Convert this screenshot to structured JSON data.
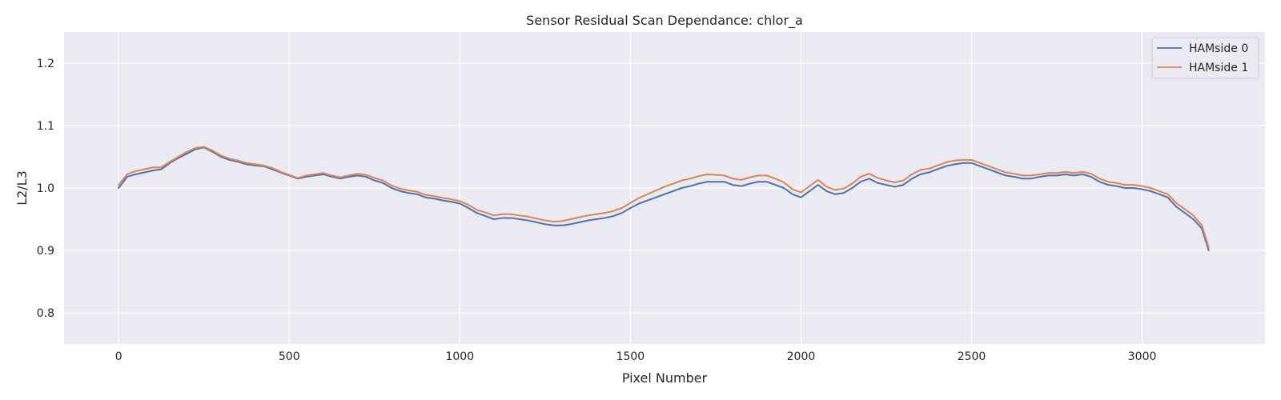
{
  "chart_data": {
    "type": "line",
    "title": "Sensor Residual Scan Dependance: chlor_a",
    "xlabel": "Pixel Number",
    "ylabel": "L2/L3",
    "xlim": [
      -160,
      3360
    ],
    "ylim": [
      0.75,
      1.25
    ],
    "xticks": [
      0,
      500,
      1000,
      1500,
      2000,
      2500,
      3000
    ],
    "yticks": [
      0.8,
      0.9,
      1.0,
      1.1,
      1.2
    ],
    "xtick_labels": [
      "0",
      "500",
      "1000",
      "1500",
      "2000",
      "2500",
      "3000"
    ],
    "ytick_labels": [
      "0.8",
      "0.9",
      "1.0",
      "1.1",
      "1.2"
    ],
    "grid": true,
    "legend_position": "top-right",
    "background_color": "#eaeaf2",
    "grid_color": "#ffffff",
    "series": [
      {
        "name": "HAMside 0",
        "color": "#4c72b0",
        "x": [
          0,
          25,
          50,
          75,
          100,
          125,
          150,
          175,
          200,
          225,
          250,
          275,
          300,
          325,
          350,
          375,
          400,
          425,
          450,
          475,
          500,
          525,
          550,
          575,
          600,
          625,
          650,
          675,
          700,
          725,
          750,
          775,
          800,
          825,
          850,
          875,
          900,
          925,
          950,
          975,
          1000,
          1025,
          1050,
          1075,
          1100,
          1125,
          1150,
          1175,
          1200,
          1225,
          1250,
          1275,
          1300,
          1325,
          1350,
          1375,
          1400,
          1425,
          1450,
          1475,
          1500,
          1525,
          1550,
          1575,
          1600,
          1625,
          1650,
          1675,
          1700,
          1725,
          1750,
          1775,
          1800,
          1825,
          1850,
          1875,
          1900,
          1925,
          1950,
          1975,
          2000,
          2025,
          2050,
          2075,
          2100,
          2125,
          2150,
          2175,
          2200,
          2225,
          2250,
          2275,
          2300,
          2325,
          2350,
          2375,
          2400,
          2425,
          2450,
          2475,
          2500,
          2525,
          2550,
          2575,
          2600,
          2625,
          2650,
          2675,
          2700,
          2725,
          2750,
          2775,
          2800,
          2825,
          2850,
          2875,
          2900,
          2925,
          2950,
          2975,
          3000,
          3025,
          3050,
          3075,
          3100,
          3125,
          3150,
          3175,
          3195
        ],
        "y": [
          1.0,
          1.018,
          1.022,
          1.025,
          1.028,
          1.03,
          1.04,
          1.048,
          1.055,
          1.062,
          1.065,
          1.058,
          1.05,
          1.045,
          1.042,
          1.038,
          1.036,
          1.035,
          1.03,
          1.025,
          1.02,
          1.015,
          1.018,
          1.02,
          1.022,
          1.018,
          1.015,
          1.018,
          1.02,
          1.018,
          1.012,
          1.008,
          1.0,
          0.995,
          0.992,
          0.99,
          0.985,
          0.983,
          0.98,
          0.978,
          0.975,
          0.968,
          0.96,
          0.955,
          0.95,
          0.952,
          0.952,
          0.95,
          0.948,
          0.945,
          0.942,
          0.94,
          0.94,
          0.942,
          0.945,
          0.948,
          0.95,
          0.952,
          0.955,
          0.96,
          0.968,
          0.975,
          0.98,
          0.985,
          0.99,
          0.995,
          1.0,
          1.003,
          1.007,
          1.01,
          1.01,
          1.01,
          1.005,
          1.003,
          1.007,
          1.01,
          1.01,
          1.005,
          1.0,
          0.99,
          0.985,
          0.995,
          1.005,
          0.995,
          0.99,
          0.992,
          1.0,
          1.01,
          1.015,
          1.008,
          1.005,
          1.002,
          1.005,
          1.015,
          1.022,
          1.025,
          1.03,
          1.035,
          1.038,
          1.04,
          1.04,
          1.035,
          1.03,
          1.025,
          1.02,
          1.018,
          1.015,
          1.015,
          1.018,
          1.02,
          1.02,
          1.022,
          1.02,
          1.022,
          1.018,
          1.01,
          1.005,
          1.003,
          1.0,
          1.0,
          0.998,
          0.995,
          0.99,
          0.985,
          0.97,
          0.96,
          0.95,
          0.935,
          0.9
        ]
      },
      {
        "name": "HAMside 1",
        "color": "#dd8452",
        "x": [
          0,
          25,
          50,
          75,
          100,
          125,
          150,
          175,
          200,
          225,
          250,
          275,
          300,
          325,
          350,
          375,
          400,
          425,
          450,
          475,
          500,
          525,
          550,
          575,
          600,
          625,
          650,
          675,
          700,
          725,
          750,
          775,
          800,
          825,
          850,
          875,
          900,
          925,
          950,
          975,
          1000,
          1025,
          1050,
          1075,
          1100,
          1125,
          1150,
          1175,
          1200,
          1225,
          1250,
          1275,
          1300,
          1325,
          1350,
          1375,
          1400,
          1425,
          1450,
          1475,
          1500,
          1525,
          1550,
          1575,
          1600,
          1625,
          1650,
          1675,
          1700,
          1725,
          1750,
          1775,
          1800,
          1825,
          1850,
          1875,
          1900,
          1925,
          1950,
          1975,
          2000,
          2025,
          2050,
          2075,
          2100,
          2125,
          2150,
          2175,
          2200,
          2225,
          2250,
          2275,
          2300,
          2325,
          2350,
          2375,
          2400,
          2425,
          2450,
          2475,
          2500,
          2525,
          2550,
          2575,
          2600,
          2625,
          2650,
          2675,
          2700,
          2725,
          2750,
          2775,
          2800,
          2825,
          2850,
          2875,
          2900,
          2925,
          2950,
          2975,
          3000,
          3025,
          3050,
          3075,
          3100,
          3125,
          3150,
          3175,
          3195
        ],
        "y": [
          1.005,
          1.022,
          1.027,
          1.03,
          1.033,
          1.033,
          1.042,
          1.05,
          1.058,
          1.064,
          1.066,
          1.06,
          1.052,
          1.047,
          1.044,
          1.04,
          1.038,
          1.036,
          1.032,
          1.026,
          1.021,
          1.016,
          1.02,
          1.022,
          1.024,
          1.02,
          1.017,
          1.02,
          1.023,
          1.021,
          1.016,
          1.012,
          1.004,
          0.999,
          0.996,
          0.994,
          0.989,
          0.987,
          0.984,
          0.982,
          0.979,
          0.973,
          0.965,
          0.961,
          0.956,
          0.958,
          0.958,
          0.956,
          0.954,
          0.951,
          0.948,
          0.946,
          0.947,
          0.95,
          0.953,
          0.956,
          0.958,
          0.96,
          0.963,
          0.968,
          0.976,
          0.984,
          0.99,
          0.996,
          1.002,
          1.007,
          1.012,
          1.015,
          1.019,
          1.022,
          1.021,
          1.02,
          1.015,
          1.013,
          1.017,
          1.02,
          1.02,
          1.015,
          1.009,
          0.998,
          0.993,
          1.003,
          1.013,
          1.002,
          0.997,
          0.999,
          1.007,
          1.018,
          1.023,
          1.016,
          1.012,
          1.009,
          1.012,
          1.022,
          1.029,
          1.031,
          1.036,
          1.041,
          1.044,
          1.045,
          1.045,
          1.04,
          1.035,
          1.03,
          1.025,
          1.023,
          1.02,
          1.02,
          1.022,
          1.024,
          1.024,
          1.026,
          1.024,
          1.026,
          1.023,
          1.015,
          1.01,
          1.008,
          1.005,
          1.005,
          1.003,
          1.0,
          0.995,
          0.99,
          0.976,
          0.966,
          0.956,
          0.94,
          0.905
        ]
      }
    ]
  }
}
